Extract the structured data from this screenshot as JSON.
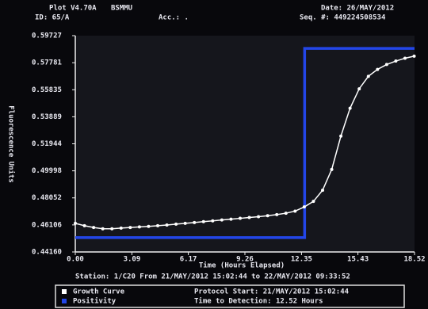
{
  "header": {
    "program": "Plot V4.70A",
    "site": "BSMMU",
    "id": "ID: 65/A",
    "acc": "Acc.: .",
    "date": "Date: 26/MAY/2012",
    "seq": "Seq. #: 449224508534"
  },
  "chart_data": {
    "type": "line",
    "xlabel": "Time (Hours Elapsed)",
    "ylabel": "Fluorescence Units",
    "station": "Station: 1/C20 From 21/MAY/2012 15:02:44 to 22/MAY/2012 09:33:52",
    "protocol_start": "Protocol Start: 21/MAY/2012 15:02:44",
    "time_to_detection": "Time to Detection: 12.52 Hours",
    "xlim": [
      0,
      18.52
    ],
    "ylim": [
      0.4416,
      0.59727
    ],
    "xticks": [
      {
        "value": 0,
        "label": "0.00"
      },
      3.09,
      6.17,
      9.26,
      12.35,
      15.43,
      18.52
    ],
    "yticks": [
      {
        "value": 0.4416,
        "label": "0.44160"
      },
      0.46106,
      0.48052,
      0.49998,
      0.51944,
      0.53889,
      0.55835,
      0.57781,
      0.59727
    ],
    "series": [
      {
        "name": "Growth Curve",
        "color": "#ffffff",
        "markers": true,
        "x": [
          0,
          0.5,
          1,
          1.5,
          2,
          2.5,
          3,
          3.5,
          4,
          4.5,
          5,
          5.5,
          6,
          6.5,
          7,
          7.5,
          8,
          8.5,
          9,
          9.5,
          10,
          10.5,
          11,
          11.5,
          12,
          12.5,
          13,
          13.5,
          14,
          14.5,
          15,
          15.5,
          16,
          16.5,
          17,
          17.5,
          18,
          18.5
        ],
        "values": [
          0.4622,
          0.4605,
          0.4592,
          0.4583,
          0.4583,
          0.4588,
          0.4592,
          0.4596,
          0.46,
          0.4605,
          0.461,
          0.4616,
          0.4622,
          0.4628,
          0.4634,
          0.464,
          0.4646,
          0.4652,
          0.4658,
          0.4664,
          0.467,
          0.4677,
          0.4685,
          0.4695,
          0.471,
          0.474,
          0.478,
          0.486,
          0.501,
          0.525,
          0.545,
          0.559,
          0.568,
          0.573,
          0.5765,
          0.579,
          0.581,
          0.5825
        ]
      },
      {
        "name": "Positivity",
        "color": "#2346e8",
        "markers": false,
        "x": [
          0,
          12.52,
          12.52,
          18.52
        ],
        "values": [
          0.4519,
          0.4519,
          0.5881,
          0.5881
        ]
      }
    ]
  }
}
